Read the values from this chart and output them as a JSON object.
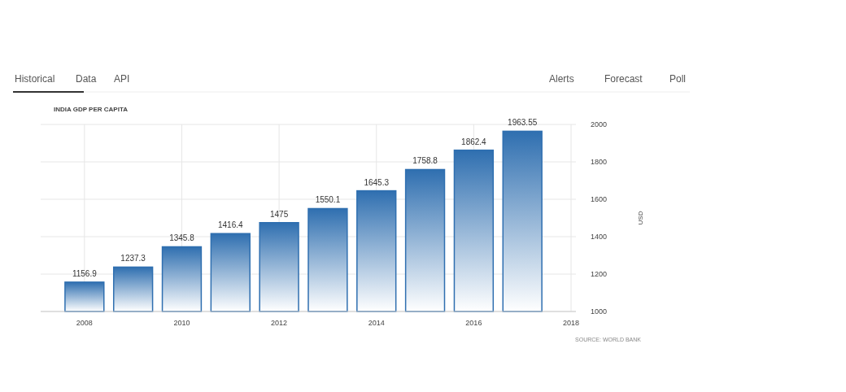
{
  "chart_data": {
    "type": "bar",
    "title": "INDIA GDP PER CAPITA",
    "ylabel": "USD",
    "x": [
      2008,
      2009,
      2010,
      2011,
      2012,
      2013,
      2014,
      2015,
      2016,
      2017
    ],
    "values": [
      1156.9,
      1237.3,
      1345.8,
      1416.4,
      1475,
      1550.1,
      1645.3,
      1758.8,
      1862.4,
      1963.55
    ],
    "color": "#2f6fb0",
    "xlim": [
      2007.1,
      2018.1
    ],
    "xticks": [
      2008,
      2010,
      2012,
      2014,
      2016,
      2018
    ],
    "ylim": [
      1000,
      2000
    ],
    "yticks": [
      1000,
      1200,
      1400,
      1600,
      1800,
      2000
    ],
    "grid": true,
    "data_labels": true,
    "annotations": [
      "Historical",
      "Data",
      "API",
      "Alerts",
      "Forecast",
      "Poll",
      "SOURCE: WORLD BANK"
    ]
  }
}
